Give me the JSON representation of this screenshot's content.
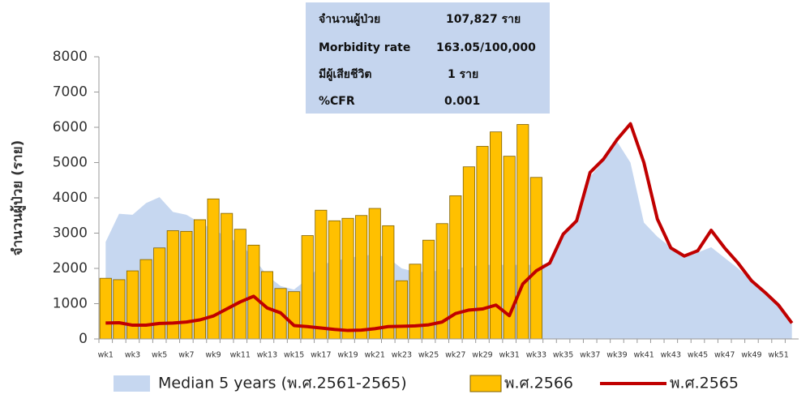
{
  "chart_data": {
    "type": "bar",
    "y_label": "จำนวนผู้ป่วย (ราย)",
    "annotations": [
      [
        "จำนวนผู้ป่วย",
        "107,827 ราย"
      ],
      [
        "Morbidity rate",
        "163.05/100,000"
      ],
      [
        "มีผู้เสียชีวิต",
        "1 ราย"
      ],
      [
        "%CFR",
        "0.001"
      ]
    ],
    "categories": [
      "wk1",
      null,
      "wk3",
      null,
      "wk5",
      null,
      "wk7",
      null,
      "wk9",
      null,
      "wk11",
      null,
      "wk13",
      null,
      "wk15",
      null,
      "wk17",
      null,
      "wk19",
      null,
      "wk21",
      null,
      "wk23",
      null,
      "wk25",
      null,
      "wk27",
      null,
      "wk29",
      null,
      "wk31",
      null,
      "wk33",
      null,
      "wk35",
      null,
      "wk37",
      null,
      "wk39",
      null,
      "wk41",
      null,
      "wk43",
      null,
      "wk45",
      null,
      "wk47",
      null,
      "wk49",
      null,
      "wk51",
      null
    ],
    "ylim": [
      0,
      8000
    ],
    "yticks": [
      0,
      1000,
      2000,
      3000,
      4000,
      5000,
      6000,
      7000,
      8000
    ],
    "series": [
      {
        "name": "Median 5 years (พ.ศ.2561-2565)",
        "type": "area",
        "color": "#c6d7f0",
        "values": [
          2750,
          3550,
          3520,
          3850,
          4020,
          3600,
          3520,
          3300,
          3100,
          2900,
          2700,
          2300,
          1800,
          1500,
          1400,
          1700,
          2100,
          2200,
          2300,
          2350,
          2400,
          2300,
          2000,
          1900,
          1900,
          1950,
          2000,
          2050,
          2100,
          2100,
          2100,
          2100,
          2100,
          2150,
          2900,
          3300,
          4600,
          5050,
          5600,
          5000,
          3300,
          2900,
          2600,
          2350,
          2450,
          2600,
          2300,
          2000,
          1650,
          1300,
          950,
          450
        ]
      },
      {
        "name": "พ.ศ.2566",
        "type": "bar",
        "color": "#ffc000",
        "values": [
          1720,
          1680,
          1930,
          2250,
          2580,
          3070,
          3050,
          3380,
          3970,
          3560,
          3110,
          2660,
          1910,
          1430,
          1340,
          2930,
          3650,
          3350,
          3420,
          3500,
          3700,
          3210,
          1650,
          2120,
          2800,
          3270,
          4060,
          4880,
          5460,
          5870,
          5180,
          6080,
          4580,
          null,
          null,
          null,
          null,
          null,
          null,
          null,
          null,
          null,
          null,
          null,
          null,
          null,
          null,
          null,
          null,
          null,
          null,
          null
        ]
      },
      {
        "name": "พ.ศ.2565",
        "type": "line",
        "color": "#c00000",
        "values": [
          450,
          460,
          390,
          390,
          440,
          450,
          480,
          540,
          650,
          850,
          1050,
          1210,
          880,
          740,
          380,
          350,
          310,
          270,
          240,
          250,
          290,
          350,
          360,
          370,
          400,
          480,
          720,
          820,
          850,
          960,
          660,
          1560,
          1930,
          2150,
          2970,
          3350,
          4720,
          5100,
          5650,
          6100,
          5000,
          3400,
          2580,
          2350,
          2500,
          3080,
          2580,
          2150,
          1650,
          1320,
          960,
          450
        ]
      }
    ]
  }
}
